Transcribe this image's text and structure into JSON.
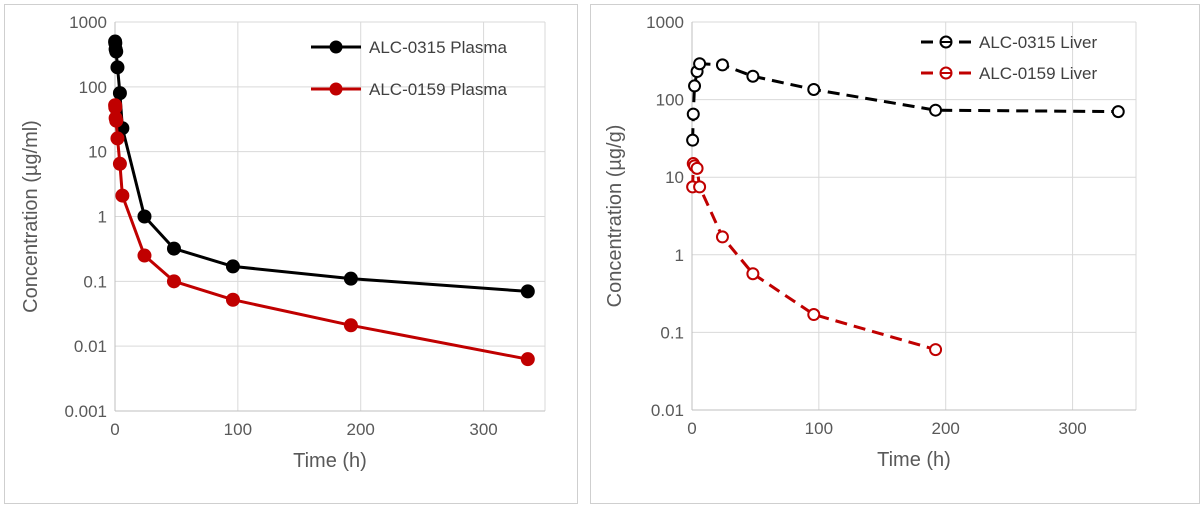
{
  "chart_data": [
    {
      "type": "line",
      "title": "",
      "xlabel": "Time (h)",
      "ylabel": "Concentration (µg/ml)",
      "yscale": "log",
      "xlim": [
        0,
        350
      ],
      "ylim": [
        0.001,
        1000
      ],
      "xticks": [
        "0",
        "100",
        "200",
        "300"
      ],
      "yticks": [
        "0.001",
        "0.01",
        "0.1",
        "1",
        "10",
        "100",
        "1000"
      ],
      "grid": true,
      "legend_position": "top-right",
      "series": [
        {
          "name": "ALC-0315 Plasma",
          "color": "#000000",
          "marker": "filled-circle",
          "line": "solid",
          "x": [
            0.1,
            0.25,
            0.5,
            1,
            2,
            4,
            6,
            24,
            48,
            96,
            192,
            336
          ],
          "y": [
            500,
            470,
            380,
            350,
            200,
            80,
            23,
            1.0,
            0.32,
            0.17,
            0.11,
            0.07
          ]
        },
        {
          "name": "ALC-0159 Plasma",
          "color": "#c00000",
          "marker": "filled-circle",
          "line": "solid",
          "x": [
            0.1,
            0.25,
            0.5,
            1,
            2,
            4,
            6,
            24,
            48,
            96,
            192,
            336
          ],
          "y": [
            52,
            48,
            33,
            30,
            16,
            6.5,
            2.1,
            0.25,
            0.1,
            0.052,
            0.021,
            0.0063
          ]
        }
      ]
    },
    {
      "type": "line",
      "title": "",
      "xlabel": "Time (h)",
      "ylabel": "Concentration (µg/g)",
      "yscale": "log",
      "xlim": [
        0,
        350
      ],
      "ylim": [
        0.01,
        1000
      ],
      "xticks": [
        "0",
        "100",
        "200",
        "300"
      ],
      "yticks": [
        "0.01",
        "0.1",
        "1",
        "10",
        "100",
        "1000"
      ],
      "grid": true,
      "legend_position": "top-right",
      "series": [
        {
          "name": "ALC-0315 Liver",
          "color": "#000000",
          "marker": "open-circle",
          "line": "dashed",
          "x": [
            0.5,
            1,
            2,
            4,
            6,
            24,
            48,
            96,
            192,
            336
          ],
          "y": [
            30,
            65,
            150,
            230,
            290,
            280,
            200,
            135,
            73,
            70
          ]
        },
        {
          "name": "ALC-0159 Liver",
          "color": "#c00000",
          "marker": "open-circle",
          "line": "dashed",
          "x": [
            0.5,
            1,
            2,
            4,
            6,
            24,
            48,
            96,
            192
          ],
          "y": [
            7.5,
            15,
            14,
            13,
            7.5,
            1.7,
            0.57,
            0.17,
            0.06
          ]
        }
      ]
    }
  ]
}
